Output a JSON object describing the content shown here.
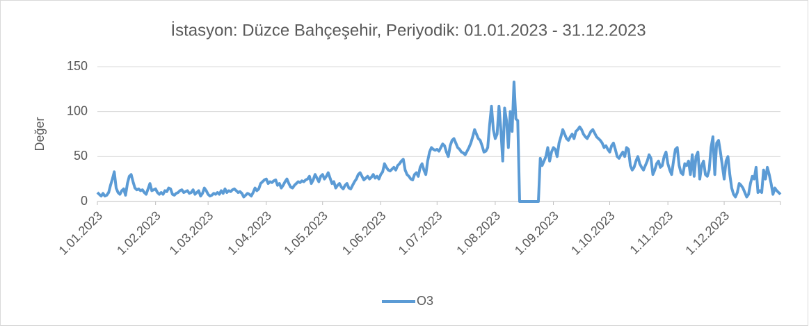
{
  "chart_data": {
    "type": "line",
    "title": "İstasyon: Düzce Bahçeşehir, Periyodik: 01.01.2023 - 31.12.2023",
    "y_label": "Değer",
    "categories": [
      "1.01.2023",
      null,
      null,
      null,
      null,
      null,
      null,
      null,
      null,
      null,
      null,
      null,
      null,
      null,
      null,
      null,
      null,
      null,
      null,
      null,
      null,
      null,
      null,
      null,
      null,
      null,
      null,
      null,
      null,
      null,
      null,
      "1.02.2023",
      null,
      null,
      null,
      null,
      null,
      null,
      null,
      null,
      null,
      null,
      null,
      null,
      null,
      null,
      null,
      null,
      null,
      null,
      null,
      null,
      null,
      null,
      null,
      null,
      null,
      null,
      null,
      "1.03.2023",
      null,
      null,
      null,
      null,
      null,
      null,
      null,
      null,
      null,
      null,
      null,
      null,
      null,
      null,
      null,
      null,
      null,
      null,
      null,
      null,
      null,
      null,
      null,
      null,
      null,
      null,
      null,
      null,
      null,
      null,
      "1.04.2023",
      null,
      null,
      null,
      null,
      null,
      null,
      null,
      null,
      null,
      null,
      null,
      null,
      null,
      null,
      null,
      null,
      null,
      null,
      null,
      null,
      null,
      null,
      null,
      null,
      null,
      null,
      null,
      null,
      null,
      "1.05.2023",
      null,
      null,
      null,
      null,
      null,
      null,
      null,
      null,
      null,
      null,
      null,
      null,
      null,
      null,
      null,
      null,
      null,
      null,
      null,
      null,
      null,
      null,
      null,
      null,
      null,
      null,
      null,
      null,
      null,
      null,
      "1.06.2023",
      null,
      null,
      null,
      null,
      null,
      null,
      null,
      null,
      null,
      null,
      null,
      null,
      null,
      null,
      null,
      null,
      null,
      null,
      null,
      null,
      null,
      null,
      null,
      null,
      null,
      null,
      null,
      null,
      null,
      "1.07.2023",
      null,
      null,
      null,
      null,
      null,
      null,
      null,
      null,
      null,
      null,
      null,
      null,
      null,
      null,
      null,
      null,
      null,
      null,
      null,
      null,
      null,
      null,
      null,
      null,
      null,
      null,
      null,
      null,
      null,
      null,
      "1.08.2023",
      null,
      null,
      null,
      null,
      null,
      null,
      null,
      null,
      null,
      null,
      null,
      null,
      null,
      null,
      null,
      null,
      null,
      null,
      null,
      null,
      null,
      null,
      null,
      null,
      null,
      null,
      null,
      null,
      null,
      null,
      "1.09.2023",
      null,
      null,
      null,
      null,
      null,
      null,
      null,
      null,
      null,
      null,
      null,
      null,
      null,
      null,
      null,
      null,
      null,
      null,
      null,
      null,
      null,
      null,
      null,
      null,
      null,
      null,
      null,
      null,
      null,
      "1.10.2023",
      null,
      null,
      null,
      null,
      null,
      null,
      null,
      null,
      null,
      null,
      null,
      null,
      null,
      null,
      null,
      null,
      null,
      null,
      null,
      null,
      null,
      null,
      null,
      null,
      null,
      null,
      null,
      null,
      null,
      null,
      "1.11.2023",
      null,
      null,
      null,
      null,
      null,
      null,
      null,
      null,
      null,
      null,
      null,
      null,
      null,
      null,
      null,
      null,
      null,
      null,
      null,
      null,
      null,
      null,
      null,
      null,
      null,
      null,
      null,
      null,
      null,
      "1.12.2023",
      null,
      null,
      null,
      null,
      null,
      null,
      null,
      null,
      null,
      null,
      null,
      null,
      null,
      null,
      null,
      null,
      null,
      null,
      null,
      null,
      null,
      null,
      null,
      null,
      null,
      null,
      null,
      null,
      null,
      null
    ],
    "series": [
      {
        "name": "O3",
        "color": "#5b9bd5",
        "values": [
          10,
          8,
          6,
          9,
          6,
          7,
          10,
          18,
          25,
          33,
          15,
          10,
          8,
          12,
          14,
          7,
          20,
          28,
          30,
          22,
          15,
          13,
          14,
          12,
          13,
          10,
          8,
          14,
          20,
          12,
          13,
          14,
          10,
          8,
          10,
          8,
          12,
          11,
          15,
          14,
          8,
          7,
          9,
          10,
          12,
          13,
          10,
          11,
          12,
          9,
          10,
          13,
          8,
          10,
          12,
          6,
          9,
          15,
          12,
          8,
          6,
          7,
          9,
          8,
          10,
          8,
          12,
          9,
          14,
          10,
          12,
          11,
          13,
          14,
          12,
          10,
          11,
          9,
          5,
          7,
          9,
          8,
          6,
          10,
          15,
          12,
          14,
          20,
          22,
          24,
          25,
          20,
          22,
          21,
          23,
          24,
          18,
          20,
          15,
          18,
          22,
          25,
          20,
          16,
          15,
          18,
          20,
          22,
          21,
          23,
          22,
          24,
          25,
          28,
          20,
          24,
          30,
          26,
          22,
          28,
          30,
          25,
          28,
          32,
          26,
          20,
          22,
          15,
          18,
          20,
          16,
          14,
          18,
          20,
          15,
          14,
          18,
          22,
          25,
          30,
          32,
          28,
          24,
          26,
          28,
          25,
          27,
          30,
          26,
          28,
          25,
          30,
          33,
          42,
          38,
          35,
          34,
          36,
          38,
          35,
          40,
          42,
          45,
          47,
          35,
          30,
          28,
          25,
          24,
          30,
          32,
          28,
          38,
          42,
          35,
          30,
          45,
          55,
          60,
          58,
          57,
          58,
          56,
          60,
          64,
          62,
          55,
          50,
          62,
          68,
          70,
          65,
          60,
          58,
          55,
          54,
          52,
          56,
          60,
          65,
          72,
          80,
          75,
          70,
          68,
          62,
          55,
          56,
          60,
          85,
          106,
          80,
          70,
          75,
          106,
          80,
          45,
          104,
          90,
          60,
          100,
          78,
          133,
          92,
          90,
          0,
          0,
          0,
          0,
          0,
          0,
          0,
          0,
          0,
          0,
          0,
          48,
          40,
          45,
          50,
          60,
          45,
          55,
          60,
          58,
          50,
          65,
          72,
          80,
          75,
          70,
          68,
          72,
          75,
          70,
          78,
          80,
          83,
          80,
          75,
          72,
          70,
          74,
          78,
          80,
          76,
          72,
          70,
          68,
          65,
          60,
          62,
          58,
          55,
          62,
          65,
          58,
          50,
          48,
          52,
          55,
          50,
          60,
          58,
          40,
          35,
          38,
          45,
          50,
          42,
          38,
          35,
          40,
          45,
          52,
          48,
          30,
          35,
          42,
          45,
          38,
          40,
          50,
          55,
          42,
          35,
          30,
          45,
          58,
          60,
          40,
          32,
          30,
          42,
          40,
          45,
          30,
          52,
          28,
          50,
          55,
          25,
          40,
          45,
          30,
          28,
          35,
          60,
          72,
          30,
          65,
          68,
          55,
          40,
          25,
          45,
          50,
          30,
          15,
          8,
          5,
          10,
          20,
          18,
          15,
          10,
          5,
          8,
          20,
          28,
          25,
          38,
          10,
          12,
          10,
          35,
          25,
          38,
          30,
          20,
          8,
          15,
          12,
          10,
          8
        ]
      }
    ],
    "ylim": [
      0,
      150
    ],
    "yticks": [
      0,
      50,
      100,
      150
    ],
    "grid": true,
    "legend": "bottom"
  }
}
